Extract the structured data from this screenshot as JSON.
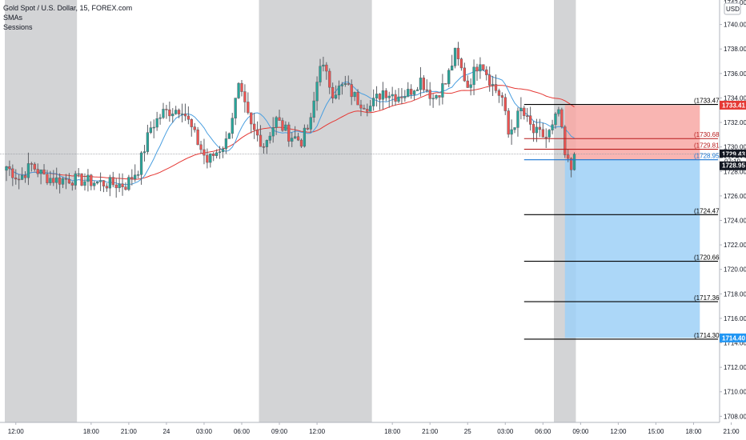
{
  "legend": {
    "symbol": "Gold Spot / U.S. Dollar, 15, FOREX.com",
    "indicator1": "SMAs",
    "indicator2": "Sessions"
  },
  "currency_badge": "USD",
  "colors": {
    "up": "#26a69a",
    "down": "#ef5350",
    "candle": "#5d6066",
    "sma_fast": "#4a9fe0",
    "sma_slow": "#e53935",
    "session": "#d3d4d6",
    "stop_zone": "#f8a8a5",
    "target_zone": "#9ed0f7",
    "last_price_tag": "#131722",
    "stop_tag": "#e53935",
    "target_tag": "#2196f3"
  },
  "chart_data": {
    "type": "candlestick",
    "title": "Gold Spot / U.S. Dollar, 15, FOREX.com",
    "ylim": [
      1707.5,
      1742
    ],
    "y_ticks": [
      1708,
      1710,
      1712,
      1714,
      1716,
      1718,
      1720,
      1722,
      1724,
      1726,
      1728,
      1730,
      1732,
      1734,
      1736,
      1738,
      1740
    ],
    "x_ticks": [
      "12:00",
      "18:00",
      "21:00",
      "24",
      "03:00",
      "06:00",
      "09:00",
      "12:00",
      "18:00",
      "21:00",
      "25",
      "03:00",
      "06:00",
      "09:00",
      "12:00",
      "15:00",
      "18:00",
      "21:00"
    ],
    "x_tick_index": [
      3,
      27,
      39,
      51,
      63,
      75,
      87,
      99,
      123,
      135,
      147,
      159,
      171,
      183,
      195,
      207,
      219,
      231
    ],
    "session_spans": [
      [
        0,
        23
      ],
      [
        81,
        117
      ],
      [
        175,
        182
      ]
    ],
    "ohlc_anchor_closes": [
      [
        0,
        1728.4
      ],
      [
        4,
        1727.4
      ],
      [
        8,
        1728.5
      ],
      [
        12,
        1727.6
      ],
      [
        16,
        1727.3
      ],
      [
        20,
        1727.4
      ],
      [
        26,
        1727.2
      ],
      [
        32,
        1727.0
      ],
      [
        38,
        1726.9
      ],
      [
        42,
        1728.2
      ],
      [
        46,
        1731.6
      ],
      [
        50,
        1732.8
      ],
      [
        56,
        1733.2
      ],
      [
        60,
        1730.9
      ],
      [
        64,
        1728.8
      ],
      [
        70,
        1730.4
      ],
      [
        74,
        1734.8
      ],
      [
        78,
        1731.6
      ],
      [
        82,
        1730.2
      ],
      [
        86,
        1732.2
      ],
      [
        90,
        1731.0
      ],
      [
        94,
        1730.5
      ],
      [
        97,
        1732.0
      ],
      [
        100,
        1737.0
      ],
      [
        104,
        1734.5
      ],
      [
        108,
        1735.0
      ],
      [
        112,
        1733.8
      ],
      [
        116,
        1733.3
      ],
      [
        120,
        1734.6
      ],
      [
        124,
        1734.2
      ],
      [
        128,
        1734.4
      ],
      [
        132,
        1735.5
      ],
      [
        136,
        1734.0
      ],
      [
        140,
        1735.2
      ],
      [
        143,
        1737.6
      ],
      [
        147,
        1735.0
      ],
      [
        151,
        1737.2
      ],
      [
        155,
        1735.0
      ],
      [
        158,
        1734.0
      ],
      [
        160,
        1731.0
      ],
      [
        164,
        1733.0
      ],
      [
        168,
        1731.2
      ],
      [
        172,
        1730.8
      ],
      [
        174,
        1731.5
      ],
      [
        176,
        1733.0
      ],
      [
        178,
        1729.2
      ],
      [
        180,
        1728.2
      ],
      [
        181,
        1729.4
      ]
    ],
    "last_price": 1729.43,
    "countdown": "07:10",
    "position": {
      "type": "short",
      "entry": 1728.95,
      "stop": 1733.41,
      "target": 1714.4,
      "start_index": 178,
      "end_index": 221
    },
    "levels": [
      {
        "value": 1733.47,
        "label": "(1733.47)",
        "color": "#000000"
      },
      {
        "value": 1730.68,
        "label": "(1730.68)",
        "color": "#b71c1c"
      },
      {
        "value": 1729.81,
        "label": "(1729.81)",
        "color": "#b71c1c"
      },
      {
        "value": 1728.95,
        "label": "(1728.95)",
        "color": "#1976d2"
      },
      {
        "value": 1724.47,
        "label": "(1724.47)",
        "color": "#000000"
      },
      {
        "value": 1720.66,
        "label": "(1720.66)",
        "color": "#000000"
      },
      {
        "value": 1717.36,
        "label": "(1717.36)",
        "color": "#000000"
      },
      {
        "value": 1714.3,
        "label": "(1714.30)",
        "color": "#000000"
      }
    ],
    "price_tags": [
      {
        "value": 1733.41,
        "label": "1733.41",
        "kind": "stop"
      },
      {
        "value": 1729.43,
        "label": "1729.43",
        "kind": "last"
      },
      {
        "value": 1728.95,
        "label": "1728.95",
        "kind": "last"
      },
      {
        "value": 1714.4,
        "label": "1714.40",
        "kind": "target"
      }
    ],
    "partial_top_label": "1742.00"
  }
}
